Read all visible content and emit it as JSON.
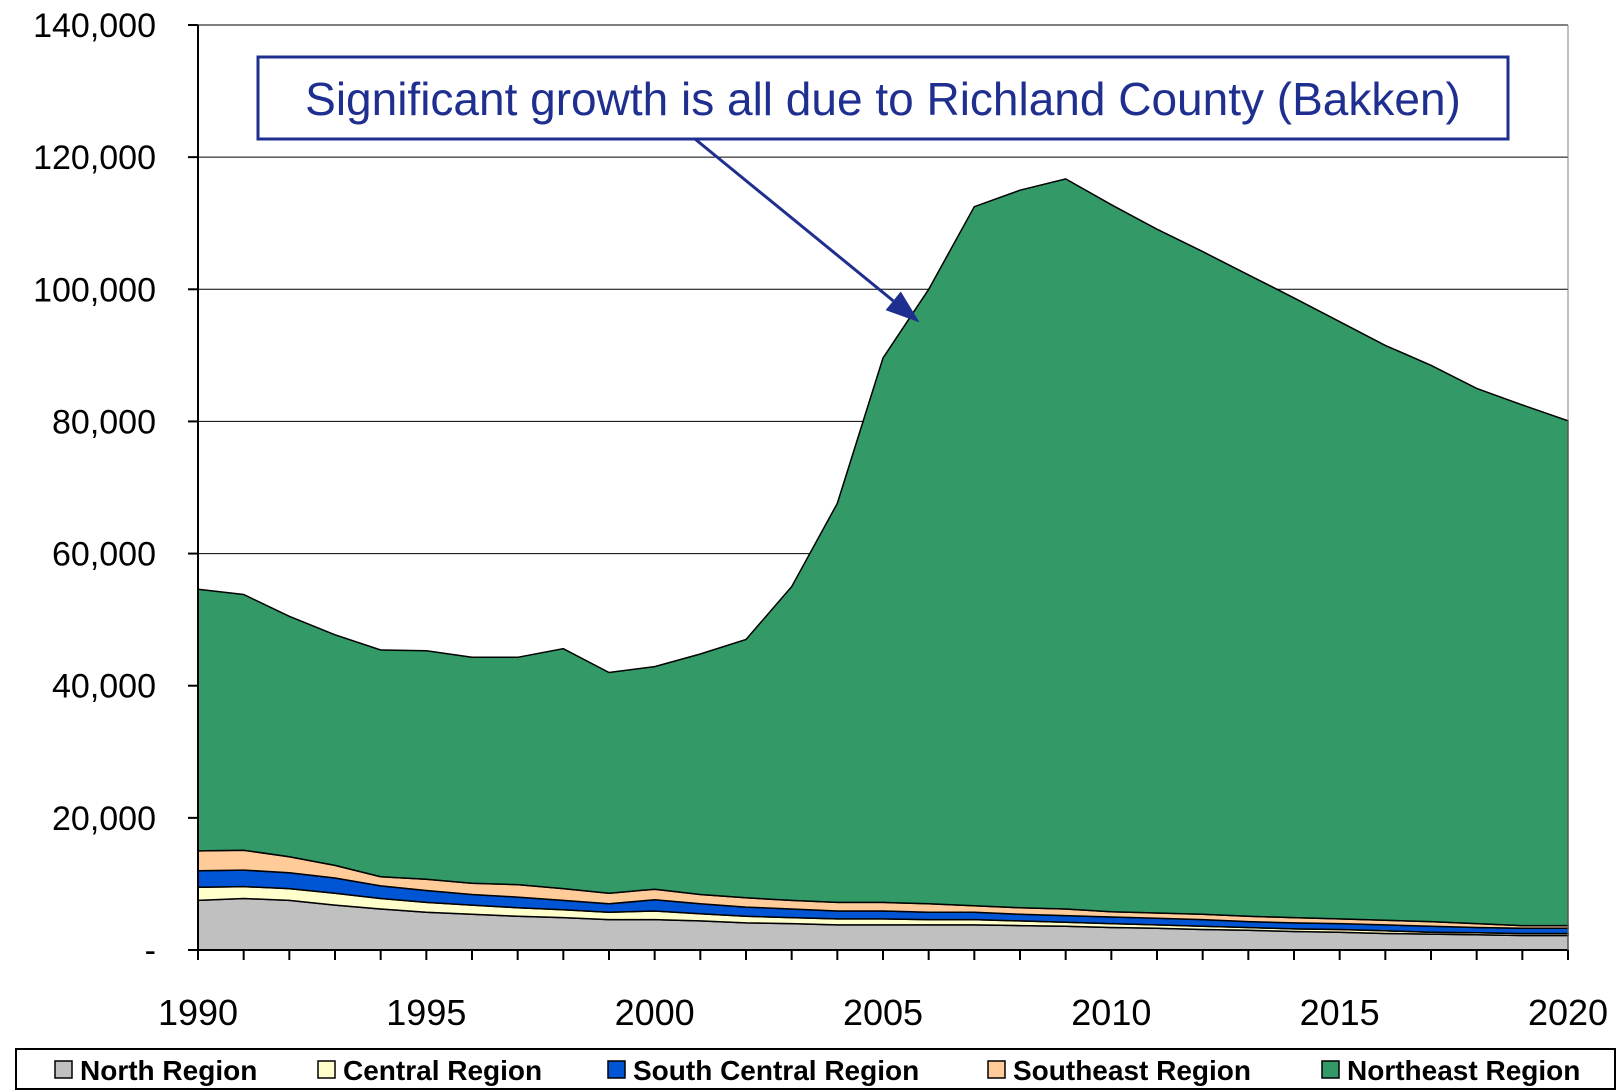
{
  "chart_data": {
    "type": "area",
    "stacked": true,
    "title": "",
    "xlabel": "",
    "ylabel": "",
    "xlim": [
      1990,
      2020
    ],
    "ylim": [
      0,
      140000
    ],
    "x": [
      1990,
      1991,
      1992,
      1993,
      1994,
      1995,
      1996,
      1997,
      1998,
      1999,
      2000,
      2001,
      2002,
      2003,
      2004,
      2005,
      2006,
      2007,
      2008,
      2009,
      2010,
      2011,
      2012,
      2013,
      2014,
      2015,
      2016,
      2017,
      2018,
      2019,
      2020
    ],
    "x_ticks": [
      1990,
      1995,
      2000,
      2005,
      2010,
      2015,
      2020
    ],
    "x_tick_labels": [
      "1990",
      "1995",
      "2000",
      "2005",
      "2010",
      "2015",
      "2020"
    ],
    "y_ticks": [
      0,
      20000,
      40000,
      60000,
      80000,
      100000,
      120000,
      140000
    ],
    "y_tick_labels": [
      "-",
      "20,000",
      "40,000",
      "60,000",
      "80,000",
      "100,000",
      "120,000",
      "140,000"
    ],
    "grid": "horizontal",
    "legend_position": "bottom",
    "series": [
      {
        "name": "North Region",
        "color": "#c0c0c0",
        "values": [
          7500,
          7800,
          7500,
          6800,
          6200,
          5700,
          5400,
          5100,
          4900,
          4600,
          4600,
          4400,
          4100,
          4000,
          3800,
          3800,
          3800,
          3800,
          3700,
          3600,
          3400,
          3300,
          3100,
          3000,
          2800,
          2700,
          2500,
          2400,
          2300,
          2200,
          2200
        ]
      },
      {
        "name": "Central Region",
        "color": "#ffffcc",
        "values": [
          2000,
          1800,
          1800,
          1800,
          1600,
          1500,
          1400,
          1300,
          1200,
          1100,
          1300,
          1100,
          1000,
          900,
          900,
          900,
          800,
          800,
          700,
          600,
          600,
          500,
          500,
          400,
          400,
          400,
          400,
          300,
          300,
          300,
          300
        ]
      },
      {
        "name": "South Central Region",
        "color": "#0055d4",
        "values": [
          2500,
          2500,
          2400,
          2300,
          1900,
          1800,
          1600,
          1600,
          1400,
          1300,
          1700,
          1500,
          1400,
          1300,
          1200,
          1200,
          1100,
          1100,
          1000,
          1000,
          1000,
          1000,
          1000,
          900,
          900,
          900,
          900,
          900,
          800,
          800,
          800
        ]
      },
      {
        "name": "Southeast Region",
        "color": "#ffcc99",
        "values": [
          3000,
          3000,
          2400,
          1900,
          1400,
          1700,
          1700,
          1900,
          1800,
          1600,
          1600,
          1400,
          1400,
          1300,
          1300,
          1300,
          1300,
          1000,
          1000,
          1000,
          800,
          800,
          800,
          800,
          800,
          700,
          700,
          700,
          600,
          400,
          400
        ]
      },
      {
        "name": "Northeast Region",
        "color": "#339966",
        "values": [
          39600,
          38700,
          36400,
          34900,
          34300,
          34600,
          34200,
          34400,
          36300,
          33400,
          33700,
          36400,
          39100,
          47500,
          60400,
          82400,
          93000,
          105800,
          108600,
          110500,
          107000,
          103500,
          100300,
          97100,
          93800,
          90400,
          87000,
          84200,
          81000,
          78800,
          76400
        ]
      }
    ],
    "annotation": {
      "text": "Significant growth is all due to Richland County (Bakken)",
      "arrow_to": [
        2005.8,
        95000
      ],
      "border_color": "#1f2f8f",
      "text_color": "#1f2f8f"
    }
  }
}
